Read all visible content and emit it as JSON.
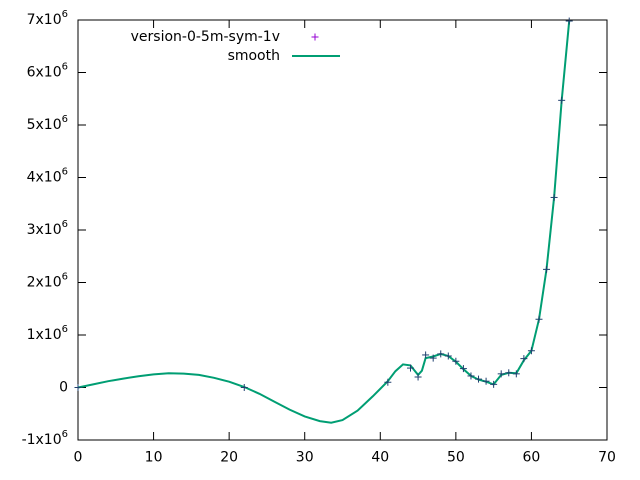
{
  "chart_data": {
    "type": "line",
    "title": "",
    "xlabel": "",
    "ylabel": "",
    "xlim": [
      0,
      70
    ],
    "ylim": [
      -1000000,
      7000000
    ],
    "x_ticks": [
      0,
      10,
      20,
      30,
      40,
      50,
      60,
      70
    ],
    "x_tick_labels": [
      "0",
      "10",
      "20",
      "30",
      "40",
      "50",
      "60",
      "70"
    ],
    "y_ticks": [
      {
        "value": -1000000,
        "mant": "-1x10",
        "exp": "6"
      },
      {
        "value": 0,
        "mant": "0",
        "exp": ""
      },
      {
        "value": 1000000,
        "mant": "1x10",
        "exp": "6"
      },
      {
        "value": 2000000,
        "mant": "2x10",
        "exp": "6"
      },
      {
        "value": 3000000,
        "mant": "3x10",
        "exp": "6"
      },
      {
        "value": 4000000,
        "mant": "4x10",
        "exp": "6"
      },
      {
        "value": 5000000,
        "mant": "5x10",
        "exp": "6"
      },
      {
        "value": 6000000,
        "mant": "6x10",
        "exp": "6"
      },
      {
        "value": 7000000,
        "mant": "7x10",
        "exp": "6"
      }
    ],
    "grid": false,
    "legend_position": "top-left",
    "series": [
      {
        "name": "version-0-5m-sym-1v",
        "style": "points",
        "marker": "+",
        "color": "#9400d3",
        "x": [
          0,
          22,
          41,
          44,
          45,
          46,
          47,
          48,
          49,
          50,
          51,
          52,
          53,
          54,
          55,
          56,
          57,
          58,
          59,
          60,
          61,
          62,
          63,
          64,
          65
        ],
        "y": [
          0,
          0,
          100000,
          370000,
          200000,
          620000,
          560000,
          640000,
          600000,
          500000,
          360000,
          220000,
          160000,
          120000,
          60000,
          260000,
          280000,
          260000,
          550000,
          700000,
          1300000,
          2250000,
          3620000,
          5470000,
          6980000
        ]
      },
      {
        "name": "smooth",
        "style": "line",
        "color": "#009e73",
        "x": [
          0,
          2,
          4,
          6,
          8,
          10,
          12,
          14,
          16,
          18,
          20,
          22,
          24,
          26,
          28,
          30,
          32,
          33.5,
          35,
          37,
          39,
          41,
          42,
          43,
          44,
          44.5,
          45,
          45.5,
          46,
          47,
          48,
          49,
          50,
          51,
          52,
          53,
          54,
          55,
          56,
          57,
          58,
          59,
          60,
          61,
          62,
          63,
          64,
          65
        ],
        "y": [
          0,
          60000,
          120000,
          170000,
          215000,
          250000,
          270000,
          265000,
          240000,
          185000,
          110000,
          10000,
          -120000,
          -270000,
          -420000,
          -550000,
          -640000,
          -670000,
          -620000,
          -440000,
          -170000,
          120000,
          310000,
          440000,
          420000,
          330000,
          240000,
          320000,
          560000,
          590000,
          640000,
          600000,
          490000,
          350000,
          220000,
          150000,
          110000,
          60000,
          240000,
          280000,
          270000,
          520000,
          700000,
          1300000,
          2250000,
          3620000,
          5470000,
          6980000
        ]
      }
    ]
  }
}
